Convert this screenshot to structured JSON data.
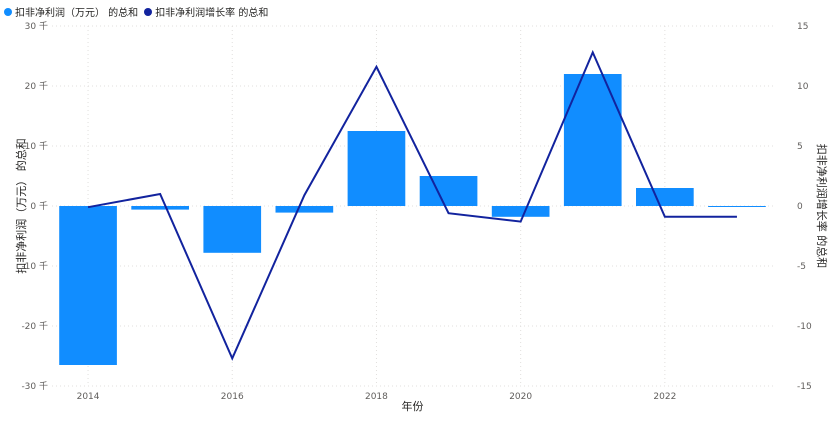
{
  "legend": {
    "items": [
      {
        "label": "扣非净利润（万元） 的总和",
        "color": "#118DFF"
      },
      {
        "label": "扣非净利润增长率 的总和",
        "color": "#12239E"
      }
    ]
  },
  "chart_data": {
    "type": "bar+line",
    "x": [
      2014,
      2015,
      2016,
      2017,
      2018,
      2019,
      2020,
      2021,
      2022,
      2023
    ],
    "x_tick_labels": [
      "2014",
      "2016",
      "2018",
      "2020",
      "2022"
    ],
    "xlabel": "年份",
    "ylabel_left": "扣非净利润（万元） 的总和",
    "ylabel_right": "扣非净利润增长率 的总和",
    "y_left_ticks": [
      "30 千",
      "20 千",
      "10 千",
      "0 千",
      "-10 千",
      "-20 千",
      "-30 千"
    ],
    "y_left_tick_values": [
      30000,
      20000,
      10000,
      0,
      -10000,
      -20000,
      -30000
    ],
    "y_left_lim": [
      -30000,
      30000
    ],
    "y_right_ticks": [
      "15",
      "10",
      "5",
      "0",
      "-5",
      "-10",
      "-15"
    ],
    "y_right_tick_values": [
      15,
      10,
      5,
      0,
      -5,
      -10,
      -15
    ],
    "y_right_lim": [
      -15,
      15
    ],
    "grid": "dotted",
    "legend_position": "top-left",
    "series": [
      {
        "name": "扣非净利润（万元） 的总和",
        "type": "bar",
        "axis": "left",
        "color": "#118DFF",
        "values": [
          -26500,
          -600,
          -7800,
          -1100,
          12500,
          5000,
          -1800,
          22000,
          3000,
          -100
        ]
      },
      {
        "name": "扣非净利润增长率 的总和",
        "type": "line",
        "axis": "right",
        "color": "#12239E",
        "values": [
          -0.1,
          1.0,
          -12.7,
          0.9,
          11.6,
          -0.6,
          -1.3,
          12.8,
          -0.9,
          -0.9
        ]
      }
    ]
  }
}
